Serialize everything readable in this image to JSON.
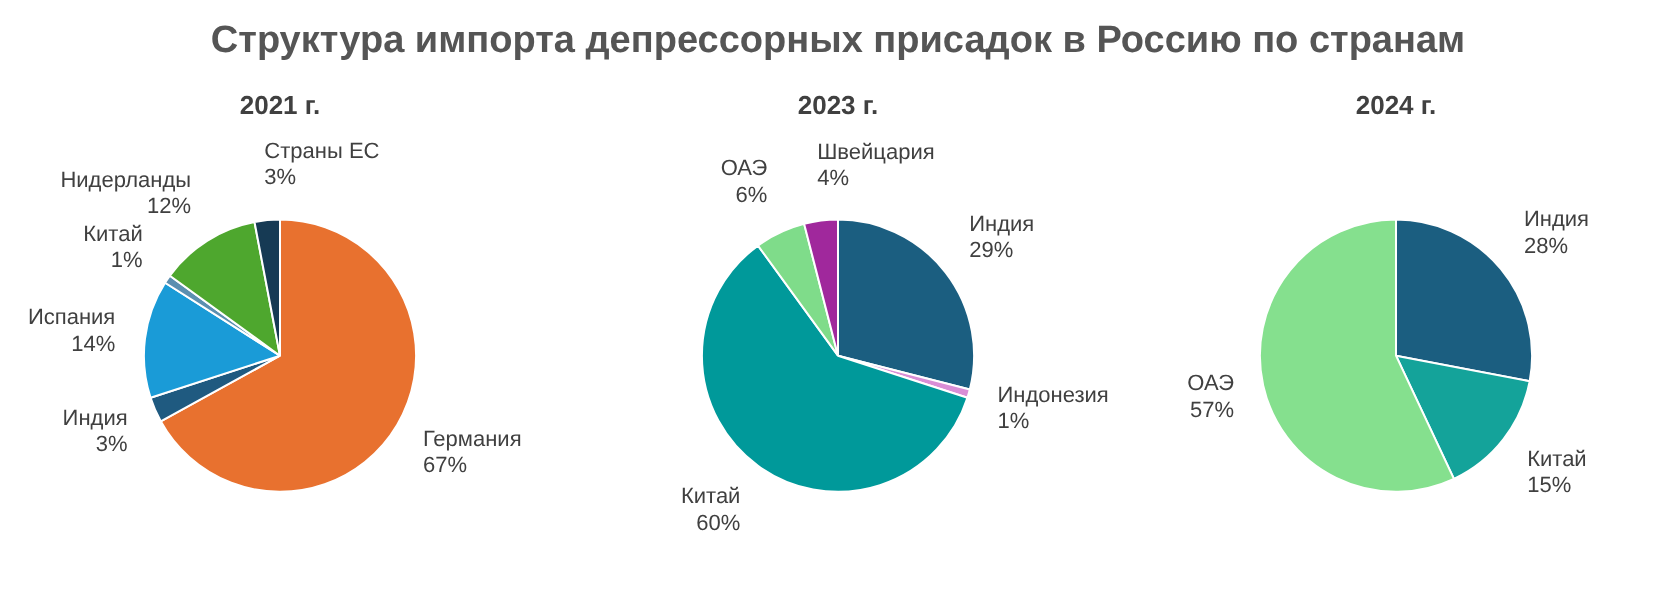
{
  "chart_data": [
    {
      "type": "pie",
      "title": "Структура импорта депрессорных присадок в Россию по странам",
      "subtitle": "2021 г.",
      "categories": [
        "Германия",
        "Индия",
        "Испания",
        "Китай",
        "Нидерланды",
        "Страны ЕС"
      ],
      "values": [
        67,
        3,
        14,
        1,
        12,
        3
      ],
      "colors": [
        "#e8712f",
        "#1f5a80",
        "#1a9bd7",
        "#5b8fb0",
        "#4ea72e",
        "#163a54"
      ],
      "value_labels": [
        "67%",
        "3%",
        "14%",
        "1%",
        "12%",
        "3%"
      ]
    },
    {
      "type": "pie",
      "subtitle": "2023 г.",
      "categories": [
        "Индия",
        "Индонезия",
        "Китай",
        "ОАЭ",
        "Швейцария"
      ],
      "values": [
        29,
        1,
        60,
        6,
        4
      ],
      "colors": [
        "#1b5e80",
        "#d98ed6",
        "#00999a",
        "#7fdc8a",
        "#a0289c"
      ],
      "value_labels": [
        "29%",
        "1%",
        "60%",
        "6%",
        "4%"
      ]
    },
    {
      "type": "pie",
      "subtitle": "2024 г.",
      "categories": [
        "Индия",
        "Китай",
        "ОАЭ"
      ],
      "values": [
        28,
        15,
        57
      ],
      "colors": [
        "#1b5e80",
        "#14a39a",
        "#85e08e"
      ],
      "value_labels": [
        "28%",
        "15%",
        "57%"
      ]
    }
  ]
}
